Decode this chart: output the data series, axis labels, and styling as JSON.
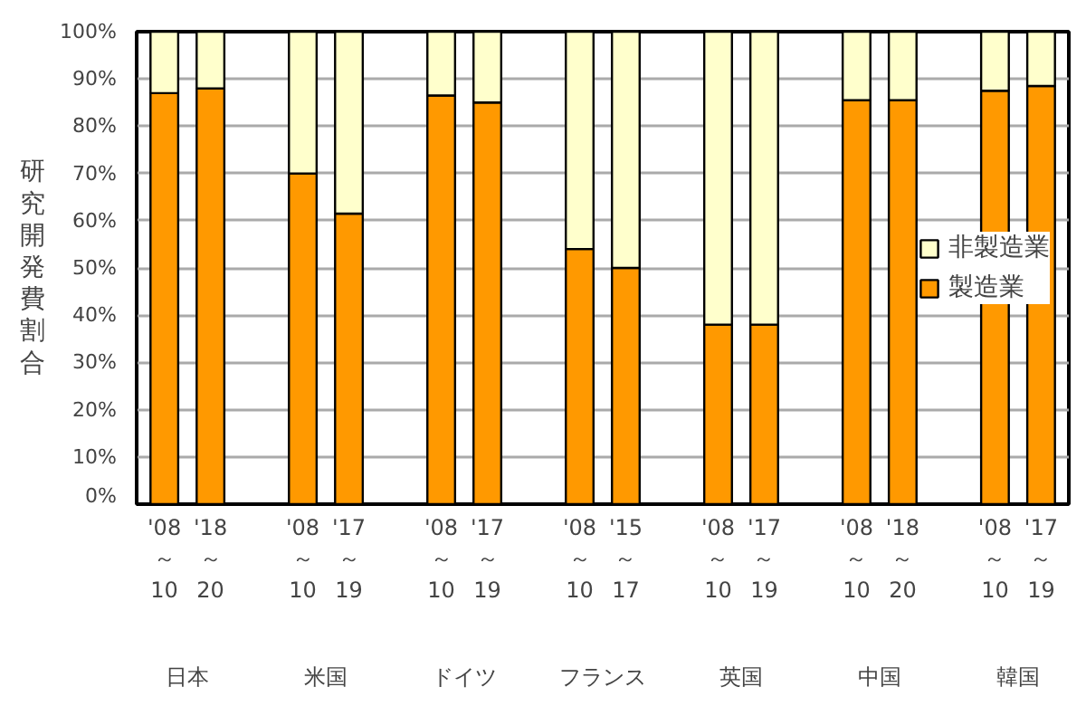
{
  "chart_data": {
    "type": "bar",
    "stacked": true,
    "ylabel": "研究開発費割合",
    "categories": [
      "'08～10",
      "'18～20",
      "'08～10",
      "'17～19",
      "'08～10",
      "'17～19",
      "'08～10",
      "'15～17",
      "'08～10",
      "'17～19",
      "'08～10",
      "'18～20",
      "'08～10",
      "'17～19"
    ],
    "annotations": [
      "日本",
      "米国",
      "ドイツ",
      "フランス",
      "英国",
      "中国",
      "韓国"
    ],
    "series": [
      {
        "name": "製造業",
        "color": "#ff9900",
        "values": [
          87,
          88,
          70,
          61.5,
          86.5,
          85,
          54,
          50,
          38,
          38,
          85.5,
          85.5,
          87.5,
          88.5
        ]
      },
      {
        "name": "非製造業",
        "color": "#ffffcc",
        "values": [
          13,
          12,
          30,
          38.5,
          13.5,
          15,
          46,
          50,
          62,
          62,
          14.5,
          14.5,
          12.5,
          11.5
        ]
      }
    ],
    "ylim": [
      0,
      100
    ],
    "yticks": [
      {
        "value": 0,
        "label": "0%"
      },
      {
        "value": 10,
        "label": "10%"
      },
      {
        "value": 20,
        "label": "20%"
      },
      {
        "value": 30,
        "label": "30%"
      },
      {
        "value": 40,
        "label": "40%"
      },
      {
        "value": 50,
        "label": "50%"
      },
      {
        "value": 60,
        "label": "60%"
      },
      {
        "value": 70,
        "label": "70%"
      },
      {
        "value": 80,
        "label": "80%"
      },
      {
        "value": 90,
        "label": "90%"
      },
      {
        "value": 100,
        "label": "100%"
      }
    ],
    "grid": "y",
    "legend": "right"
  }
}
